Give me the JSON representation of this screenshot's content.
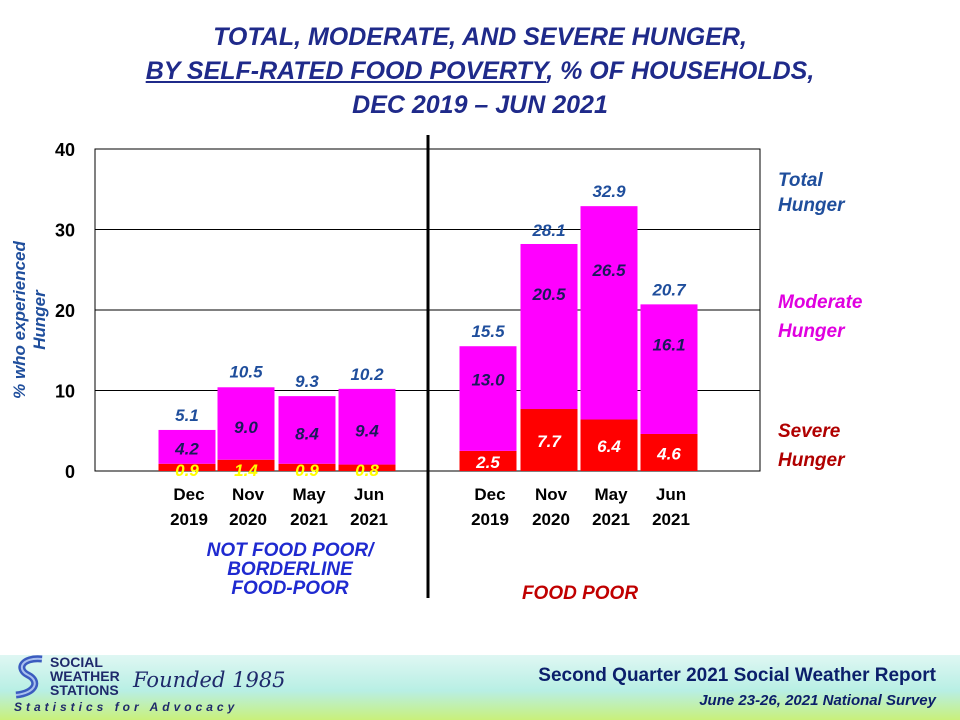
{
  "title": {
    "line1": "TOTAL, MODERATE, AND SEVERE HUNGER,",
    "line2_underlined": "BY SELF-RATED FOOD POVERTY",
    "line2_rest": ", % OF HOUSEHOLDS,",
    "line3": "DEC 2019 – JUN 2021"
  },
  "legend": {
    "total": [
      "Total",
      "Hunger"
    ],
    "moderate": [
      "Moderate",
      "Hunger"
    ],
    "severe": [
      "Severe",
      "Hunger"
    ]
  },
  "groups": {
    "not_food_poor": [
      "NOT FOOD POOR/",
      "BORDERLINE",
      "FOOD-POOR"
    ],
    "food_poor": "FOOD POOR"
  },
  "colors": {
    "moderate": "#ff00ff",
    "severe": "#ff0000",
    "total_label": "#1f4e9c",
    "moderate_label": "#1a1a5a",
    "severe_label_nfp": "#ffff00",
    "severe_label_fp": "#ffffff",
    "legend_total": "#1f4e9c",
    "legend_moderate": "#e000e0",
    "legend_severe": "#b00000",
    "group_nfp": "#1f2ad0",
    "group_fp": "#c00000"
  },
  "footer": {
    "report": "Second Quarter 2021 Social Weather Report",
    "survey": "June 23-26, 2021 National Survey",
    "org_name": [
      "SOCIAL",
      "WEATHER",
      "STATIONS"
    ],
    "founded": "Founded 1985",
    "tagline": "Statistics for Advocacy"
  },
  "chart_data": {
    "type": "bar",
    "stacked": true,
    "ylabel": "% who experienced Hunger",
    "ylim": [
      0,
      40
    ],
    "yticks": [
      0,
      10,
      20,
      30,
      40
    ],
    "grid": true,
    "categories": [
      [
        "Dec",
        "2019"
      ],
      [
        "Nov",
        "2020"
      ],
      [
        "May",
        "2021"
      ],
      [
        "Jun",
        "2021"
      ],
      [
        "Dec",
        "2019"
      ],
      [
        "Nov",
        "2020"
      ],
      [
        "May",
        "2021"
      ],
      [
        "Jun",
        "2021"
      ]
    ],
    "groups": [
      "NOT FOOD POOR/ BORDERLINE FOOD-POOR",
      "FOOD POOR"
    ],
    "series": [
      {
        "name": "Severe Hunger",
        "values": [
          0.9,
          1.4,
          0.9,
          0.8,
          2.5,
          7.7,
          6.4,
          4.6
        ]
      },
      {
        "name": "Moderate Hunger",
        "values": [
          4.2,
          9.0,
          8.4,
          9.4,
          13.0,
          20.5,
          26.5,
          16.1
        ]
      }
    ],
    "totals": [
      5.1,
      10.5,
      9.3,
      10.2,
      15.5,
      28.1,
      32.9,
      20.7
    ],
    "severe_labels": [
      "0.9",
      "1.4",
      "0.9",
      "0.8",
      "2.5",
      "7.7",
      "6.4",
      "4.6"
    ],
    "moderate_labels": [
      "4.2",
      "9.0",
      "8.4",
      "9.4",
      "13.0",
      "20.5",
      "26.5",
      "16.1"
    ],
    "total_labels": [
      "5.1",
      "10.5",
      "9.3",
      "10.2",
      "15.5",
      "28.1",
      "32.9",
      "20.7"
    ]
  }
}
